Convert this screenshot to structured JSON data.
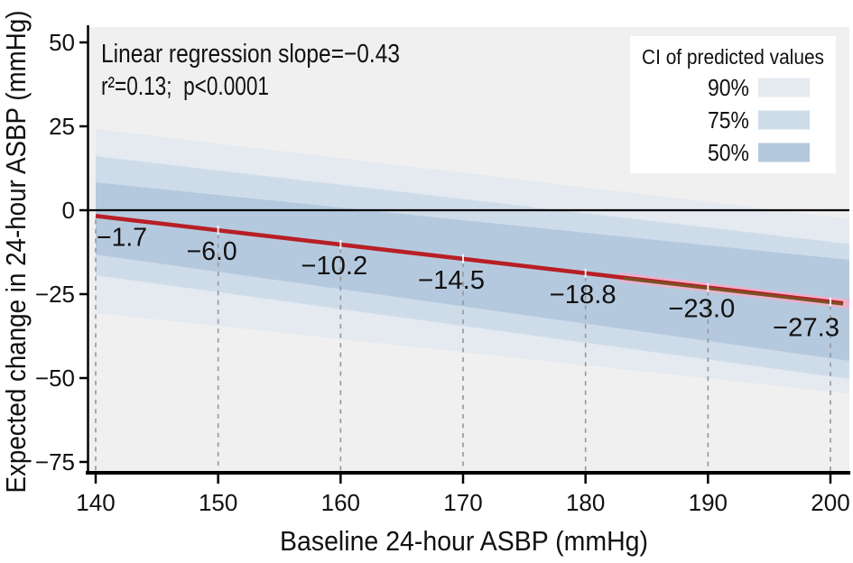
{
  "chart_data": {
    "type": "line",
    "title": "",
    "xlabel": "Baseline 24-hour ASBP (mmHg)",
    "ylabel": "Expected change in 24-hour ASBP (mmHg)",
    "xlim": [
      140,
      200
    ],
    "ylim": [
      -75,
      50
    ],
    "x_ticks": [
      140,
      150,
      160,
      170,
      180,
      190,
      200
    ],
    "y_ticks": [
      50,
      25,
      0,
      -25,
      -50,
      -75
    ],
    "grid": "dashed vertical gridlines below regression line only",
    "legend_position": "top-right",
    "stats": {
      "line1": "Linear regression slope=−0.43",
      "line2": "r²=0.13;  p<0.0001",
      "slope": -0.43,
      "r2": 0.13,
      "p": "<0.0001"
    },
    "line": {
      "x": [
        140,
        200
      ],
      "y": [
        -1.7,
        -27.3
      ],
      "color": "#b81f25"
    },
    "point_labels": {
      "x": [
        140,
        150,
        160,
        170,
        180,
        190,
        200
      ],
      "values": [
        -1.7,
        -6.0,
        -10.2,
        -14.5,
        -18.8,
        -23.0,
        -27.3
      ]
    },
    "ci_bands": [
      {
        "level": "90%",
        "color": "#e4eaf0",
        "upper": [
          24.2,
          -1.9
        ],
        "lower": [
          -30.6,
          -54.0
        ]
      },
      {
        "level": "75%",
        "color": "#cedcea",
        "upper": [
          16.1,
          -9.4
        ],
        "lower": [
          -19.4,
          -49.5
        ]
      },
      {
        "level": "50%",
        "color": "#b5c9de",
        "upper": [
          8.3,
          -14.2
        ],
        "lower": [
          -13.2,
          -44.1
        ]
      }
    ],
    "overlay": {
      "pink_band_color": "#f2aecb",
      "olive_line_color": "#6f5b22",
      "x_start": 182.8
    },
    "legend": {
      "title": "CI of predicted values",
      "items": [
        {
          "label": "90%",
          "color": "#e4eaf0"
        },
        {
          "label": "75%",
          "color": "#cedcea"
        },
        {
          "label": "50%",
          "color": "#b5c9de"
        }
      ]
    },
    "colors": {
      "plot_bg": "#f0f0f0",
      "grid": "#979797",
      "axis": "#000000",
      "zero_line": "#000000",
      "text": "#111111"
    }
  }
}
